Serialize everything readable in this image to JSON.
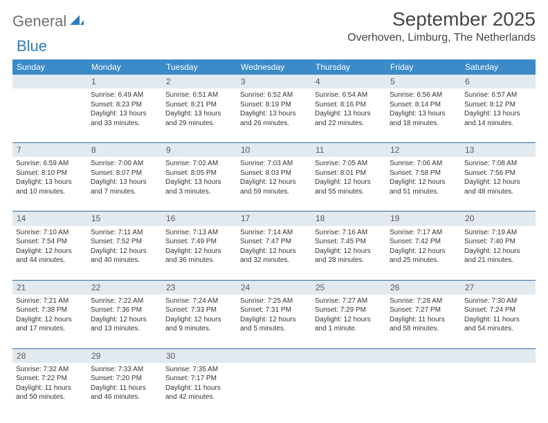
{
  "logo": {
    "text1": "General",
    "text2": "Blue"
  },
  "title": "September 2025",
  "location": "Overhoven, Limburg, The Netherlands",
  "colors": {
    "header_bg": "#3b8bc9",
    "daynum_bg": "#e2e9ef",
    "divider": "#2f6ea3",
    "logo_gray": "#6d6e71",
    "logo_blue": "#2e7cbd"
  },
  "dow": [
    "Sunday",
    "Monday",
    "Tuesday",
    "Wednesday",
    "Thursday",
    "Friday",
    "Saturday"
  ],
  "weeks": [
    {
      "nums": [
        "",
        "1",
        "2",
        "3",
        "4",
        "5",
        "6"
      ],
      "cells": [
        {
          "sunrise": "",
          "sunset": "",
          "daylight": ""
        },
        {
          "sunrise": "Sunrise: 6:49 AM",
          "sunset": "Sunset: 8:23 PM",
          "daylight": "Daylight: 13 hours and 33 minutes."
        },
        {
          "sunrise": "Sunrise: 6:51 AM",
          "sunset": "Sunset: 8:21 PM",
          "daylight": "Daylight: 13 hours and 29 minutes."
        },
        {
          "sunrise": "Sunrise: 6:52 AM",
          "sunset": "Sunset: 8:19 PM",
          "daylight": "Daylight: 13 hours and 26 minutes."
        },
        {
          "sunrise": "Sunrise: 6:54 AM",
          "sunset": "Sunset: 8:16 PM",
          "daylight": "Daylight: 13 hours and 22 minutes."
        },
        {
          "sunrise": "Sunrise: 6:56 AM",
          "sunset": "Sunset: 8:14 PM",
          "daylight": "Daylight: 13 hours and 18 minutes."
        },
        {
          "sunrise": "Sunrise: 6:57 AM",
          "sunset": "Sunset: 8:12 PM",
          "daylight": "Daylight: 13 hours and 14 minutes."
        }
      ]
    },
    {
      "nums": [
        "7",
        "8",
        "9",
        "10",
        "11",
        "12",
        "13"
      ],
      "cells": [
        {
          "sunrise": "Sunrise: 6:59 AM",
          "sunset": "Sunset: 8:10 PM",
          "daylight": "Daylight: 13 hours and 10 minutes."
        },
        {
          "sunrise": "Sunrise: 7:00 AM",
          "sunset": "Sunset: 8:07 PM",
          "daylight": "Daylight: 13 hours and 7 minutes."
        },
        {
          "sunrise": "Sunrise: 7:02 AM",
          "sunset": "Sunset: 8:05 PM",
          "daylight": "Daylight: 13 hours and 3 minutes."
        },
        {
          "sunrise": "Sunrise: 7:03 AM",
          "sunset": "Sunset: 8:03 PM",
          "daylight": "Daylight: 12 hours and 59 minutes."
        },
        {
          "sunrise": "Sunrise: 7:05 AM",
          "sunset": "Sunset: 8:01 PM",
          "daylight": "Daylight: 12 hours and 55 minutes."
        },
        {
          "sunrise": "Sunrise: 7:06 AM",
          "sunset": "Sunset: 7:58 PM",
          "daylight": "Daylight: 12 hours and 51 minutes."
        },
        {
          "sunrise": "Sunrise: 7:08 AM",
          "sunset": "Sunset: 7:56 PM",
          "daylight": "Daylight: 12 hours and 48 minutes."
        }
      ]
    },
    {
      "nums": [
        "14",
        "15",
        "16",
        "17",
        "18",
        "19",
        "20"
      ],
      "cells": [
        {
          "sunrise": "Sunrise: 7:10 AM",
          "sunset": "Sunset: 7:54 PM",
          "daylight": "Daylight: 12 hours and 44 minutes."
        },
        {
          "sunrise": "Sunrise: 7:11 AM",
          "sunset": "Sunset: 7:52 PM",
          "daylight": "Daylight: 12 hours and 40 minutes."
        },
        {
          "sunrise": "Sunrise: 7:13 AM",
          "sunset": "Sunset: 7:49 PM",
          "daylight": "Daylight: 12 hours and 36 minutes."
        },
        {
          "sunrise": "Sunrise: 7:14 AM",
          "sunset": "Sunset: 7:47 PM",
          "daylight": "Daylight: 12 hours and 32 minutes."
        },
        {
          "sunrise": "Sunrise: 7:16 AM",
          "sunset": "Sunset: 7:45 PM",
          "daylight": "Daylight: 12 hours and 28 minutes."
        },
        {
          "sunrise": "Sunrise: 7:17 AM",
          "sunset": "Sunset: 7:42 PM",
          "daylight": "Daylight: 12 hours and 25 minutes."
        },
        {
          "sunrise": "Sunrise: 7:19 AM",
          "sunset": "Sunset: 7:40 PM",
          "daylight": "Daylight: 12 hours and 21 minutes."
        }
      ]
    },
    {
      "nums": [
        "21",
        "22",
        "23",
        "24",
        "25",
        "26",
        "27"
      ],
      "cells": [
        {
          "sunrise": "Sunrise: 7:21 AM",
          "sunset": "Sunset: 7:38 PM",
          "daylight": "Daylight: 12 hours and 17 minutes."
        },
        {
          "sunrise": "Sunrise: 7:22 AM",
          "sunset": "Sunset: 7:36 PM",
          "daylight": "Daylight: 12 hours and 13 minutes."
        },
        {
          "sunrise": "Sunrise: 7:24 AM",
          "sunset": "Sunset: 7:33 PM",
          "daylight": "Daylight: 12 hours and 9 minutes."
        },
        {
          "sunrise": "Sunrise: 7:25 AM",
          "sunset": "Sunset: 7:31 PM",
          "daylight": "Daylight: 12 hours and 5 minutes."
        },
        {
          "sunrise": "Sunrise: 7:27 AM",
          "sunset": "Sunset: 7:29 PM",
          "daylight": "Daylight: 12 hours and 1 minute."
        },
        {
          "sunrise": "Sunrise: 7:28 AM",
          "sunset": "Sunset: 7:27 PM",
          "daylight": "Daylight: 11 hours and 58 minutes."
        },
        {
          "sunrise": "Sunrise: 7:30 AM",
          "sunset": "Sunset: 7:24 PM",
          "daylight": "Daylight: 11 hours and 54 minutes."
        }
      ]
    },
    {
      "nums": [
        "28",
        "29",
        "30",
        "",
        "",
        "",
        ""
      ],
      "cells": [
        {
          "sunrise": "Sunrise: 7:32 AM",
          "sunset": "Sunset: 7:22 PM",
          "daylight": "Daylight: 11 hours and 50 minutes."
        },
        {
          "sunrise": "Sunrise: 7:33 AM",
          "sunset": "Sunset: 7:20 PM",
          "daylight": "Daylight: 11 hours and 46 minutes."
        },
        {
          "sunrise": "Sunrise: 7:35 AM",
          "sunset": "Sunset: 7:17 PM",
          "daylight": "Daylight: 11 hours and 42 minutes."
        },
        {
          "sunrise": "",
          "sunset": "",
          "daylight": ""
        },
        {
          "sunrise": "",
          "sunset": "",
          "daylight": ""
        },
        {
          "sunrise": "",
          "sunset": "",
          "daylight": ""
        },
        {
          "sunrise": "",
          "sunset": "",
          "daylight": ""
        }
      ]
    }
  ]
}
